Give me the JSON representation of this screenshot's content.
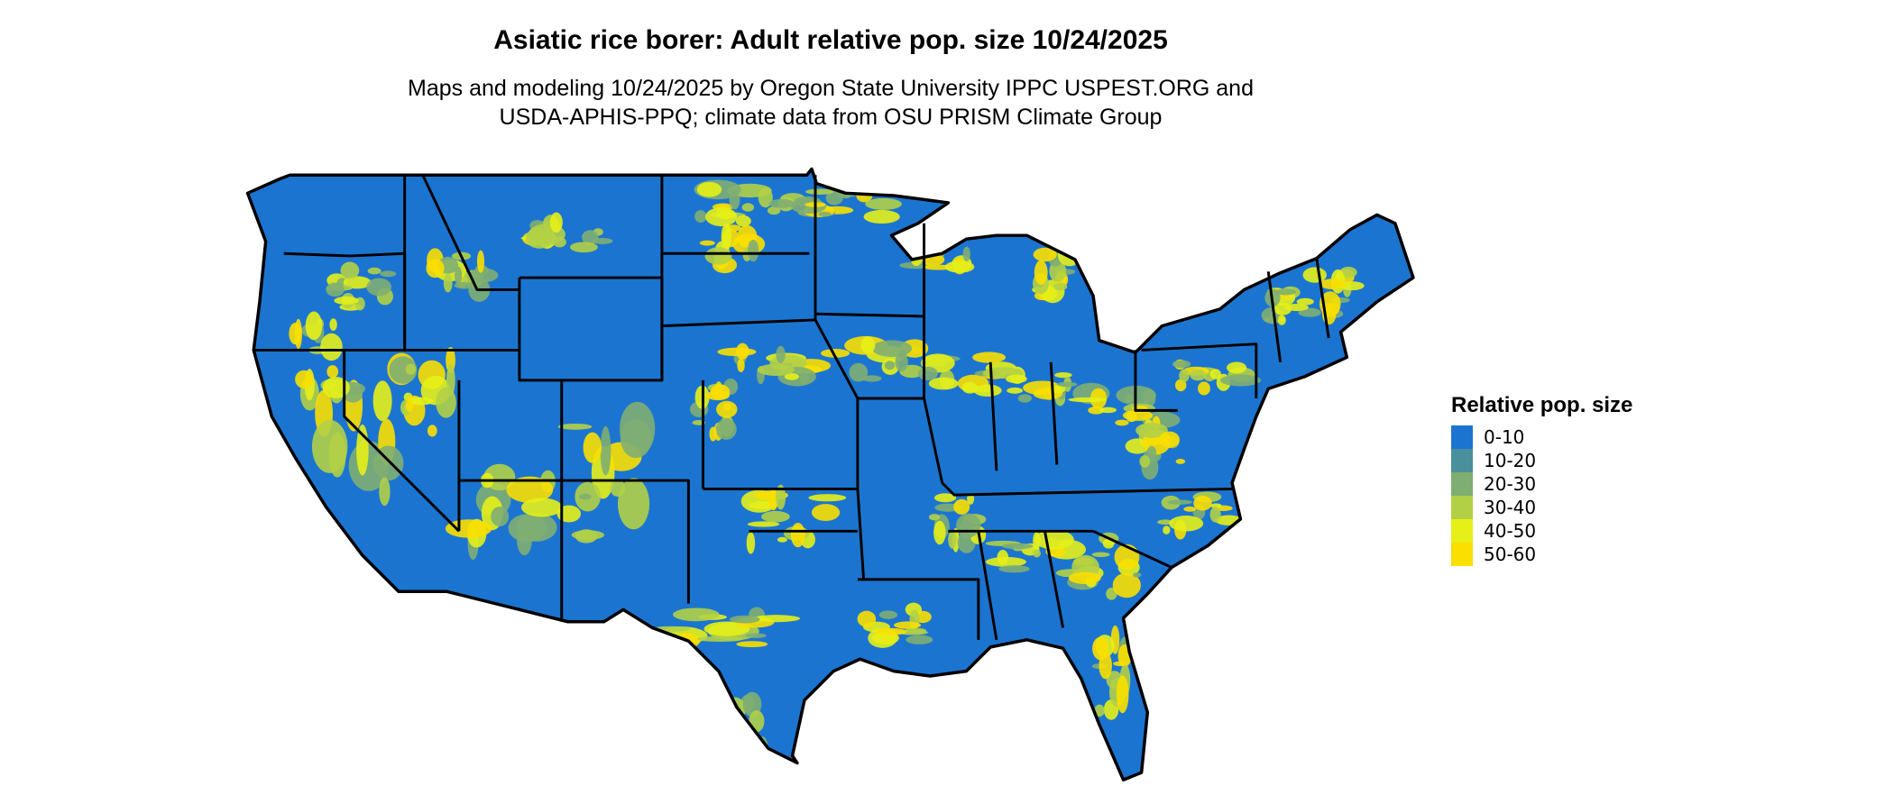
{
  "title": "Asiatic rice borer: Adult relative pop. size 10/24/2025",
  "subtitle_lines": [
    "Maps and modeling 10/24/2025 by Oregon State University IPPC USPEST.ORG and",
    "USDA-APHIS-PPQ; climate data from OSU PRISM Climate Group"
  ],
  "legend": {
    "title": "Relative pop. size",
    "items": [
      {
        "label": "0-10",
        "color": "#1b75d0"
      },
      {
        "label": "10-20",
        "color": "#4a8f9c"
      },
      {
        "label": "20-30",
        "color": "#7fae72"
      },
      {
        "label": "30-40",
        "color": "#b2d046"
      },
      {
        "label": "40-50",
        "color": "#e6ef17"
      },
      {
        "label": "50-60",
        "color": "#fadf00"
      }
    ]
  }
}
